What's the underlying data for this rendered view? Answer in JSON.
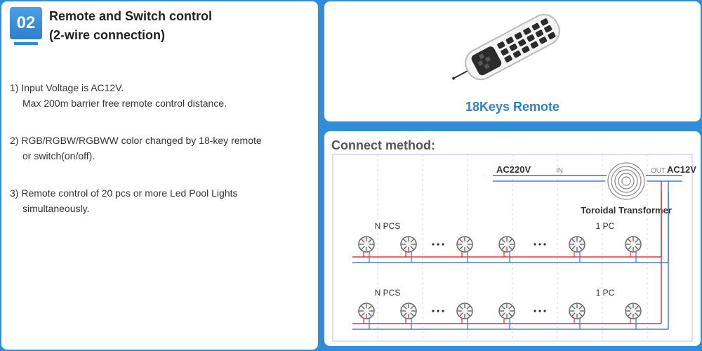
{
  "badge_number": "02",
  "title_line1": "Remote and Switch control",
  "title_line2": "(2-wire connection)",
  "point1_l1": "1) Input Voltage is AC12V.",
  "point1_l2": "Max 200m barrier free remote control distance.",
  "point2_l1": "2) RGB/RGBW/RGBWW color changed by 18-key remote",
  "point2_l2": "or switch(on/off).",
  "point3_l1": "3) Remote control of 20 pcs or more Led Pool Lights",
  "point3_l2": "simultaneously.",
  "remote_caption": "18Keys Remote",
  "connect_title": "Connect method:",
  "diagram": {
    "ac_in": "AC220V",
    "in_label": "IN",
    "out_label": "OUT",
    "ac_out": "AC12V",
    "transformer": "Toroidal Transformer",
    "npcs": "N PCS",
    "onepc": "1 PC",
    "colors": {
      "wire_hot": "#d93939",
      "wire_neutral": "#4a7bd6",
      "guide": "#b0c4e8",
      "dash": "#9bb8e0",
      "text": "#333",
      "light_text": "#888"
    }
  }
}
